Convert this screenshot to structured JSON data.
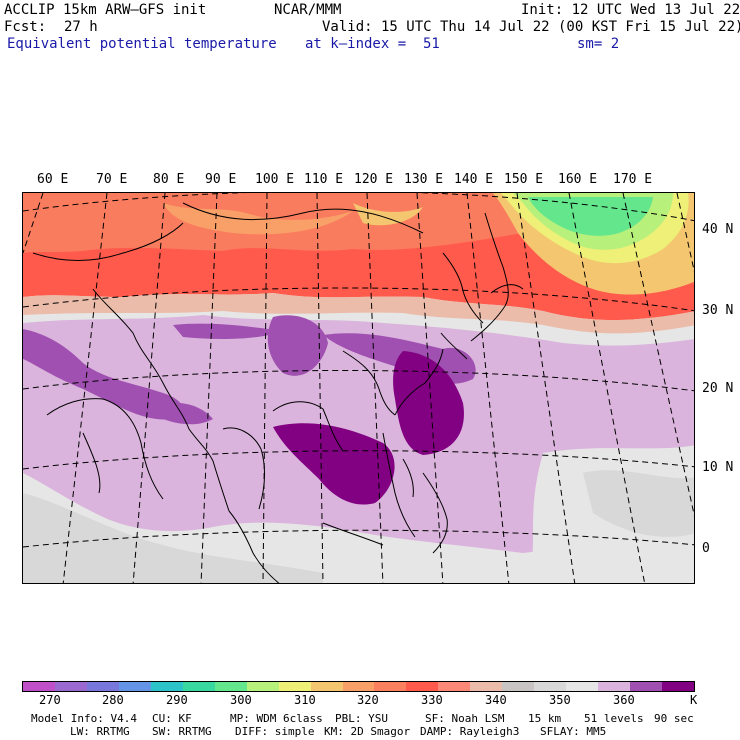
{
  "header": {
    "model": "ACCLIP 15km ARW–GFS init",
    "center": "NCAR/MMM",
    "init": "Init: 12 UTC Wed 13 Jul 22",
    "fcst_label": "Fcst:",
    "fcst_value": "27 h",
    "valid": "Valid: 15 UTC Thu 14 Jul 22 (00 KST Fri 15 Jul 22)",
    "field": "Equivalent potential temperature",
    "level": "at k–index =  51",
    "smoothing": "sm= 2"
  },
  "map": {
    "lon_labels": [
      "60 E",
      "70 E",
      "80 E",
      "90 E",
      "100 E",
      "110 E",
      "120 E",
      "130 E",
      "140 E",
      "150 E",
      "160 E",
      "170 E"
    ],
    "lat_labels": [
      "40 N",
      "30 N",
      "20 N",
      "10 N",
      "0"
    ]
  },
  "colorbar": {
    "colors": [
      "#c050c8",
      "#9a6ad0",
      "#7878dc",
      "#6494e6",
      "#2cc4c8",
      "#38d8a0",
      "#64e68c",
      "#b8f07c",
      "#eef078",
      "#f4c670",
      "#f8a068",
      "#fa8060",
      "#ff5a4c",
      "#fc8878",
      "#ecbcaa",
      "#c8c4c4",
      "#d8d8d8",
      "#e6e6e6",
      "#dab4dc",
      "#a050b0",
      "#820082"
    ],
    "labels": [
      "270",
      "280",
      "290",
      "300",
      "310",
      "320",
      "330",
      "340",
      "350",
      "360"
    ],
    "unit": "K"
  },
  "footer": {
    "line1": [
      "Model Info: V4.4",
      "CU: KF",
      "MP: WDM 6class",
      "PBL: YSU",
      "SF: Noah LSM",
      "15 km",
      "51 levels",
      "90 sec"
    ],
    "line2": [
      "LW: RRTMG",
      "SW: RRTMG",
      "DIFF: simple",
      "KM: 2D Smagor",
      "DAMP: Rayleigh3",
      "SFLAY: MM5"
    ]
  }
}
